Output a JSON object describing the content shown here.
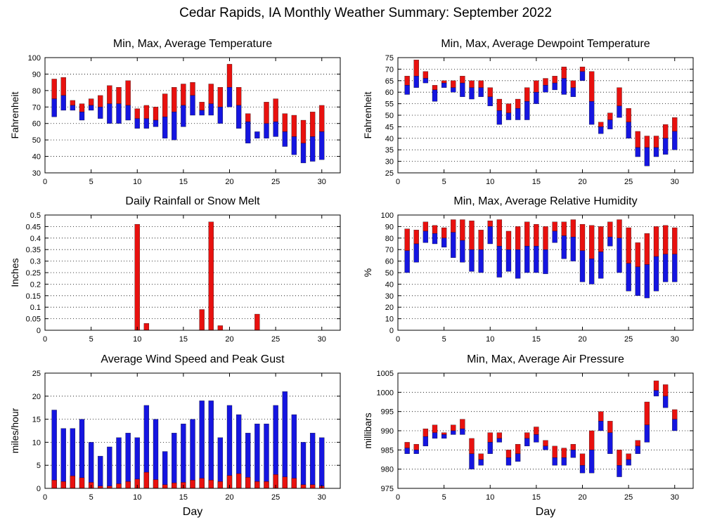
{
  "title": "Cedar Rapids, IA Monthly Weather Summary: September 2022",
  "colors": {
    "upper": "#e8110f",
    "lower": "#1515e0",
    "axis": "#000000",
    "grid": "#000000"
  },
  "chart_data": [
    {
      "id": "temperature",
      "type": "bar",
      "style": "floating-range",
      "title": "Min, Max, Average Temperature",
      "xlabel": "",
      "ylabel": "Fahrenheit",
      "xlim": [
        0,
        32
      ],
      "ylim": [
        30,
        100
      ],
      "xticks": [
        0,
        5,
        10,
        15,
        20,
        25,
        30
      ],
      "yticks": [
        30,
        40,
        50,
        60,
        70,
        80,
        90,
        100
      ],
      "grid": true,
      "days": [
        1,
        2,
        3,
        4,
        5,
        6,
        7,
        8,
        9,
        10,
        11,
        12,
        13,
        14,
        15,
        16,
        17,
        18,
        19,
        20,
        21,
        22,
        23,
        24,
        25,
        26,
        27,
        28,
        29,
        30
      ],
      "series": [
        {
          "name": "Min",
          "values": [
            64,
            68,
            68,
            62,
            68,
            63,
            60,
            60,
            62,
            57,
            57,
            58,
            51,
            50,
            58,
            65,
            65,
            65,
            60,
            70,
            57,
            48,
            51,
            51,
            52,
            46,
            41,
            36,
            37,
            38
          ]
        },
        {
          "name": "Average",
          "values": [
            75,
            77,
            71,
            67,
            71,
            70,
            72,
            72,
            71,
            63,
            63,
            62,
            64,
            67,
            71,
            77,
            68,
            72,
            70,
            82,
            71,
            61,
            55,
            60,
            61,
            55,
            52,
            48,
            52,
            55
          ]
        },
        {
          "name": "Max",
          "values": [
            87,
            88,
            74,
            72,
            75,
            77,
            83,
            82,
            86,
            69,
            71,
            70,
            78,
            82,
            84,
            85,
            73,
            84,
            82,
            96,
            82,
            66,
            55,
            73,
            75,
            66,
            65,
            62,
            67,
            71
          ]
        }
      ]
    },
    {
      "id": "dewpoint",
      "type": "bar",
      "style": "floating-range",
      "title": "Min, Max, Average Dewpoint Temperature",
      "xlabel": "",
      "ylabel": "Fahrenheit",
      "xlim": [
        0,
        32
      ],
      "ylim": [
        25,
        75
      ],
      "xticks": [
        0,
        5,
        10,
        15,
        20,
        25,
        30
      ],
      "yticks": [
        25,
        30,
        35,
        40,
        45,
        50,
        55,
        60,
        65,
        70,
        75
      ],
      "grid": true,
      "days": [
        1,
        2,
        3,
        4,
        5,
        6,
        7,
        8,
        9,
        10,
        11,
        12,
        13,
        14,
        15,
        16,
        17,
        18,
        19,
        20,
        21,
        22,
        23,
        24,
        25,
        26,
        27,
        28,
        29,
        30
      ],
      "series": [
        {
          "name": "Min",
          "values": [
            59,
            62,
            64,
            56,
            62,
            60,
            58,
            57,
            58,
            54,
            46,
            48,
            48,
            48,
            55,
            60,
            61,
            59,
            58,
            65,
            46,
            42,
            44,
            49,
            40,
            32,
            28,
            32,
            33,
            35
          ]
        },
        {
          "name": "Average",
          "values": [
            63,
            67,
            66,
            61,
            64,
            62,
            64,
            62,
            62,
            58,
            52,
            51,
            53,
            56,
            60,
            63,
            64,
            66,
            62,
            69,
            56,
            45,
            48,
            54,
            47,
            36,
            36,
            36,
            40,
            43
          ]
        },
        {
          "name": "Max",
          "values": [
            67,
            74,
            69,
            63,
            65,
            65,
            67,
            65,
            65,
            62,
            57,
            55,
            57,
            62,
            65,
            66,
            67,
            71,
            65,
            71,
            69,
            47,
            51,
            62,
            53,
            43,
            41,
            41,
            46,
            49
          ]
        }
      ]
    },
    {
      "id": "rainfall",
      "type": "bar",
      "title": "Daily Rainfall or Snow Melt",
      "xlabel": "",
      "ylabel": "Inches",
      "xlim": [
        0,
        32
      ],
      "ylim": [
        0,
        0.5
      ],
      "xticks": [
        0,
        5,
        10,
        15,
        20,
        25,
        30
      ],
      "yticks": [
        0,
        0.05,
        0.1,
        0.15,
        0.2,
        0.25,
        0.3,
        0.35,
        0.4,
        0.45,
        0.5
      ],
      "grid": true,
      "days": [
        10,
        11,
        17,
        18,
        19,
        23
      ],
      "values": [
        0.46,
        0.03,
        0.09,
        0.47,
        0.02,
        0.07
      ]
    },
    {
      "id": "humidity",
      "type": "bar",
      "style": "floating-range",
      "title": "Min, Max, Average Relative Humidity",
      "xlabel": "",
      "ylabel": "%",
      "xlim": [
        0,
        32
      ],
      "ylim": [
        0,
        100
      ],
      "xticks": [
        0,
        5,
        10,
        15,
        20,
        25,
        30
      ],
      "yticks": [
        0,
        10,
        20,
        30,
        40,
        50,
        60,
        70,
        80,
        90,
        100
      ],
      "grid": true,
      "days": [
        1,
        2,
        3,
        4,
        5,
        6,
        7,
        8,
        9,
        10,
        11,
        12,
        13,
        14,
        15,
        16,
        17,
        18,
        19,
        20,
        21,
        22,
        23,
        24,
        25,
        26,
        27,
        28,
        29,
        30
      ],
      "series": [
        {
          "name": "Min",
          "values": [
            50,
            59,
            76,
            75,
            72,
            63,
            59,
            51,
            50,
            75,
            46,
            51,
            45,
            50,
            50,
            49,
            76,
            62,
            60,
            42,
            40,
            45,
            73,
            50,
            34,
            30,
            28,
            34,
            42,
            42
          ]
        },
        {
          "name": "Average",
          "values": [
            69,
            75,
            86,
            84,
            80,
            85,
            78,
            70,
            70,
            90,
            73,
            70,
            70,
            73,
            73,
            70,
            86,
            82,
            81,
            69,
            62,
            68,
            81,
            80,
            58,
            55,
            57,
            64,
            66,
            66
          ]
        },
        {
          "name": "Max",
          "values": [
            88,
            87,
            94,
            91,
            89,
            96,
            96,
            95,
            87,
            95,
            96,
            86,
            90,
            94,
            92,
            90,
            94,
            94,
            96,
            92,
            91,
            90,
            94,
            96,
            89,
            76,
            84,
            90,
            91,
            89
          ]
        }
      ]
    },
    {
      "id": "wind",
      "type": "bar",
      "style": "overlay",
      "title": "Average Wind Speed and Peak Gust",
      "xlabel": "Day",
      "ylabel": "miles/hour",
      "xlim": [
        0,
        32
      ],
      "ylim": [
        0,
        25
      ],
      "xticks": [
        0,
        5,
        10,
        15,
        20,
        25,
        30
      ],
      "yticks": [
        0,
        5,
        10,
        15,
        20,
        25
      ],
      "grid": true,
      "days": [
        1,
        2,
        3,
        4,
        5,
        6,
        7,
        8,
        9,
        10,
        11,
        12,
        13,
        14,
        15,
        16,
        17,
        18,
        19,
        20,
        21,
        22,
        23,
        24,
        25,
        26,
        27,
        28,
        29,
        30
      ],
      "series": [
        {
          "name": "Peak Gust",
          "values": [
            17,
            13,
            13,
            15,
            10,
            7,
            9,
            11,
            12,
            11,
            18,
            15,
            8,
            12,
            14,
            15,
            19,
            19,
            11,
            18,
            16,
            12,
            14,
            14,
            18,
            21,
            16,
            10,
            12,
            11
          ]
        },
        {
          "name": "Average Wind Speed",
          "values": [
            1.8,
            1.5,
            2.7,
            2.3,
            1.3,
            0.5,
            0.5,
            1.0,
            1.5,
            2.0,
            3.5,
            1.9,
            0.8,
            1.2,
            1.3,
            1.8,
            2.2,
            1.8,
            1.5,
            2.8,
            3.2,
            2.4,
            1.5,
            1.5,
            3.0,
            2.5,
            2.2,
            0.8,
            0.8,
            0.5
          ]
        }
      ]
    },
    {
      "id": "pressure",
      "type": "bar",
      "style": "floating-range",
      "title": "Min, Max, Average Air Pressure",
      "xlabel": "Day",
      "ylabel": "millibars",
      "xlim": [
        0,
        32
      ],
      "ylim": [
        975,
        1005
      ],
      "xticks": [
        0,
        5,
        10,
        15,
        20,
        25,
        30
      ],
      "yticks": [
        975,
        980,
        985,
        990,
        995,
        1000,
        1005
      ],
      "grid": true,
      "days": [
        1,
        2,
        3,
        4,
        5,
        6,
        7,
        8,
        9,
        10,
        11,
        12,
        13,
        14,
        15,
        16,
        17,
        18,
        19,
        20,
        21,
        22,
        23,
        24,
        25,
        26,
        27,
        28,
        29,
        30
      ],
      "series": [
        {
          "name": "Min",
          "values": [
            984,
            984,
            986,
            988,
            988,
            989,
            989,
            980,
            981,
            984,
            987,
            981,
            982,
            986,
            987,
            985,
            981,
            981,
            983,
            979,
            979,
            990,
            984,
            978,
            981,
            984,
            987,
            999,
            996,
            990
          ]
        },
        {
          "name": "Average",
          "values": [
            985.5,
            985,
            988.5,
            989.5,
            989,
            990,
            990.5,
            984,
            982.5,
            987,
            988,
            983,
            984,
            988,
            989,
            986,
            983,
            983,
            985,
            981,
            985,
            992.5,
            989.5,
            981,
            982.5,
            986,
            991.5,
            1000.5,
            999,
            993
          ]
        },
        {
          "name": "Max",
          "values": [
            987,
            986.5,
            990.5,
            991.5,
            989.5,
            991.5,
            993,
            988,
            984,
            989.5,
            989.5,
            985,
            986.5,
            989.5,
            991,
            987.5,
            986,
            985.5,
            986.5,
            984,
            990,
            995,
            992.5,
            985,
            984,
            987.5,
            997.5,
            1003,
            1002,
            995.5
          ]
        }
      ]
    }
  ]
}
